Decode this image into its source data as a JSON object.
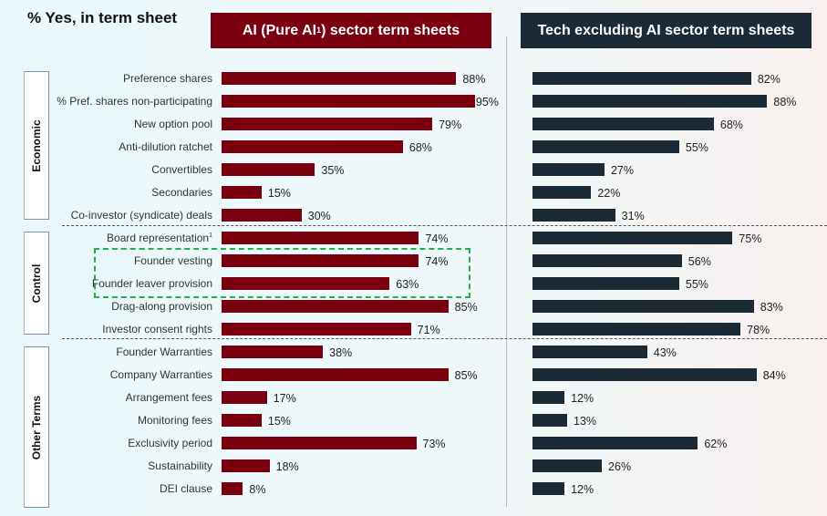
{
  "subtitle": "% Yes, in term sheet",
  "panels": {
    "ai_title": "AI (Pure AI",
    "ai_sup": "1",
    "ai_title_end": ") sector term sheets",
    "tech_title": "Tech excluding AI sector term sheets"
  },
  "groups": [
    {
      "name": "Economic"
    },
    {
      "name": "Control"
    },
    {
      "name": "Other Terms"
    }
  ],
  "colors": {
    "ai": "#7a0010",
    "tech": "#1b2a35",
    "highlight": "#22b04b"
  },
  "chart_data": {
    "type": "bar",
    "orientation": "horizontal",
    "xlim": [
      0,
      100
    ],
    "categories": [
      "Preference shares",
      "% Pref. shares non-participating",
      "New option pool",
      "Anti-dilution ratchet",
      "Convertibles",
      "Secondaries",
      "Co-investor (syndicate) deals",
      "Board representation¹",
      "Founder vesting",
      "Founder leaver provision",
      "Drag-along provision",
      "Investor consent rights",
      "Founder Warranties",
      "Company Warranties",
      "Arrangement fees",
      "Monitoring fees",
      "Exclusivity period",
      "Sustainability",
      "DEI clause"
    ],
    "category_groups": [
      "Economic",
      "Economic",
      "Economic",
      "Economic",
      "Economic",
      "Economic",
      "Economic",
      "Control",
      "Control",
      "Control",
      "Control",
      "Control",
      "Other Terms",
      "Other Terms",
      "Other Terms",
      "Other Terms",
      "Other Terms",
      "Other Terms",
      "Other Terms"
    ],
    "highlighted": [
      "Founder vesting",
      "Founder leaver provision"
    ],
    "series": [
      {
        "name": "AI (Pure AI¹) sector term sheets",
        "values": [
          88,
          95,
          79,
          68,
          35,
          15,
          30,
          74,
          74,
          63,
          85,
          71,
          38,
          85,
          17,
          15,
          73,
          18,
          8
        ]
      },
      {
        "name": "Tech excluding AI sector term sheets",
        "values": [
          82,
          88,
          68,
          55,
          27,
          22,
          31,
          75,
          56,
          55,
          83,
          78,
          43,
          84,
          12,
          13,
          62,
          26,
          12
        ]
      }
    ]
  }
}
